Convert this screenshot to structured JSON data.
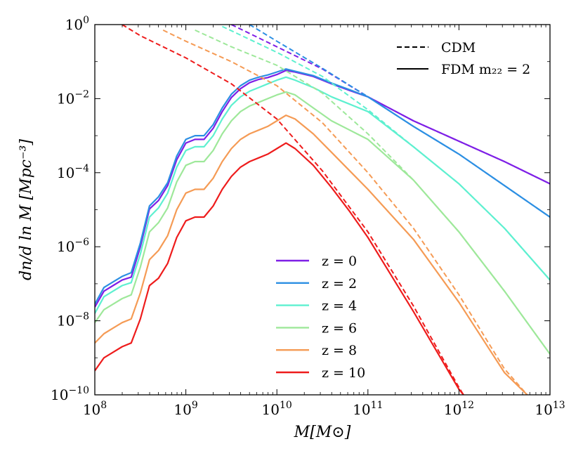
{
  "chart_data": {
    "type": "line",
    "title": "",
    "xlabel": "M[M⊙]",
    "ylabel": "dn/d ln M [Mpc⁻³]",
    "x_scale": "log",
    "y_scale": "log",
    "xlim_exp": [
      8,
      13
    ],
    "ylim_exp": [
      -10,
      0
    ],
    "x_ticks": [
      {
        "base": "10",
        "exp": "8"
      },
      {
        "base": "10",
        "exp": "9"
      },
      {
        "base": "10",
        "exp": "10"
      },
      {
        "base": "10",
        "exp": "11"
      },
      {
        "base": "10",
        "exp": "12"
      },
      {
        "base": "10",
        "exp": "13"
      }
    ],
    "y_ticks": [
      {
        "base": "10",
        "exp": "0",
        "value_exp": 0
      },
      {
        "base": "10",
        "exp": "−2",
        "value_exp": -2
      },
      {
        "base": "10",
        "exp": "−4",
        "value_exp": -4
      },
      {
        "base": "10",
        "exp": "−6",
        "value_exp": -6
      },
      {
        "base": "10",
        "exp": "−8",
        "value_exp": -8
      },
      {
        "base": "10",
        "exp": "−10",
        "value_exp": -10
      }
    ],
    "style_legend": [
      {
        "label": "CDM",
        "style": "dashed"
      },
      {
        "label": "FDM m₂₂ = 2",
        "style": "solid"
      }
    ],
    "series_legend_labels": [
      "z = 0",
      "z = 2",
      "z = 4",
      "z = 6",
      "z = 8",
      "z = 10"
    ],
    "series": [
      {
        "name": "z = 0",
        "color": "#7e1fe6",
        "cdm_log10": [
          [
            9.5,
            0
          ],
          [
            10,
            -0.6
          ],
          [
            10.5,
            -1.2
          ],
          [
            11,
            -1.95
          ],
          [
            11.5,
            -2.6
          ],
          [
            12,
            -3.15
          ],
          [
            12.5,
            -3.7
          ],
          [
            13,
            -4.3
          ]
        ],
        "fdm_log10": [
          [
            8,
            -7.63
          ],
          [
            8.1,
            -7.2
          ],
          [
            8.2,
            -7.05
          ],
          [
            8.3,
            -6.9
          ],
          [
            8.4,
            -6.82
          ],
          [
            8.5,
            -6.0
          ],
          [
            8.6,
            -4.98
          ],
          [
            8.7,
            -4.75
          ],
          [
            8.8,
            -4.35
          ],
          [
            8.9,
            -3.65
          ],
          [
            9.0,
            -3.2
          ],
          [
            9.1,
            -3.1
          ],
          [
            9.2,
            -3.1
          ],
          [
            9.3,
            -2.8
          ],
          [
            9.4,
            -2.35
          ],
          [
            9.5,
            -1.97
          ],
          [
            9.6,
            -1.73
          ],
          [
            9.7,
            -1.57
          ],
          [
            9.8,
            -1.48
          ],
          [
            9.9,
            -1.43
          ],
          [
            10,
            -1.35
          ],
          [
            10.1,
            -1.24
          ],
          [
            10.2,
            -1.28
          ],
          [
            10.4,
            -1.4
          ],
          [
            10.6,
            -1.6
          ],
          [
            10.8,
            -1.78
          ],
          [
            11,
            -1.95
          ],
          [
            11.5,
            -2.6
          ],
          [
            12,
            -3.15
          ],
          [
            12.5,
            -3.7
          ],
          [
            13,
            -4.3
          ]
        ]
      },
      {
        "name": "z = 2",
        "color": "#2c8fe3",
        "cdm_log10": [
          [
            9.7,
            0
          ],
          [
            10,
            -0.45
          ],
          [
            10.5,
            -1.18
          ],
          [
            11,
            -1.95
          ],
          [
            11.5,
            -2.75
          ],
          [
            12,
            -3.5
          ],
          [
            12.5,
            -4.35
          ],
          [
            13,
            -5.2
          ]
        ],
        "fdm_log10": [
          [
            8,
            -7.55
          ],
          [
            8.1,
            -7.1
          ],
          [
            8.2,
            -6.95
          ],
          [
            8.3,
            -6.8
          ],
          [
            8.4,
            -6.7
          ],
          [
            8.5,
            -5.9
          ],
          [
            8.6,
            -4.9
          ],
          [
            8.7,
            -4.65
          ],
          [
            8.8,
            -4.27
          ],
          [
            8.9,
            -3.55
          ],
          [
            9.0,
            -3.1
          ],
          [
            9.1,
            -3.0
          ],
          [
            9.2,
            -3.0
          ],
          [
            9.3,
            -2.7
          ],
          [
            9.4,
            -2.25
          ],
          [
            9.5,
            -1.88
          ],
          [
            9.6,
            -1.65
          ],
          [
            9.7,
            -1.5
          ],
          [
            9.8,
            -1.42
          ],
          [
            9.9,
            -1.36
          ],
          [
            10,
            -1.28
          ],
          [
            10.1,
            -1.2
          ],
          [
            10.2,
            -1.26
          ],
          [
            10.4,
            -1.38
          ],
          [
            10.6,
            -1.58
          ],
          [
            10.8,
            -1.76
          ],
          [
            11,
            -1.95
          ],
          [
            11.5,
            -2.75
          ],
          [
            12,
            -3.5
          ],
          [
            12.5,
            -4.35
          ],
          [
            13,
            -5.2
          ]
        ]
      },
      {
        "name": "z = 4",
        "color": "#5ef0d0",
        "cdm_log10": [
          [
            9.4,
            -0.05
          ],
          [
            10,
            -0.75
          ],
          [
            10.5,
            -1.4
          ],
          [
            11,
            -2.3
          ],
          [
            11.5,
            -3.3
          ],
          [
            12,
            -4.3
          ],
          [
            12.5,
            -5.5
          ],
          [
            13,
            -6.9
          ]
        ],
        "fdm_log10": [
          [
            8,
            -7.8
          ],
          [
            8.1,
            -7.35
          ],
          [
            8.2,
            -7.2
          ],
          [
            8.3,
            -7.05
          ],
          [
            8.4,
            -6.97
          ],
          [
            8.5,
            -6.2
          ],
          [
            8.6,
            -5.2
          ],
          [
            8.7,
            -4.95
          ],
          [
            8.8,
            -4.55
          ],
          [
            8.9,
            -3.85
          ],
          [
            9.0,
            -3.4
          ],
          [
            9.1,
            -3.3
          ],
          [
            9.2,
            -3.3
          ],
          [
            9.3,
            -3.0
          ],
          [
            9.4,
            -2.55
          ],
          [
            9.5,
            -2.18
          ],
          [
            9.6,
            -1.95
          ],
          [
            9.7,
            -1.8
          ],
          [
            9.8,
            -1.7
          ],
          [
            9.9,
            -1.6
          ],
          [
            10,
            -1.5
          ],
          [
            10.1,
            -1.42
          ],
          [
            10.2,
            -1.5
          ],
          [
            10.4,
            -1.7
          ],
          [
            10.6,
            -1.95
          ],
          [
            10.8,
            -2.15
          ],
          [
            11,
            -2.35
          ],
          [
            11.5,
            -3.3
          ],
          [
            12,
            -4.3
          ],
          [
            12.5,
            -5.5
          ],
          [
            13,
            -6.9
          ]
        ]
      },
      {
        "name": "z = 6",
        "color": "#9ee89a",
        "cdm_log10": [
          [
            9.1,
            -0.15
          ],
          [
            9.5,
            -0.6
          ],
          [
            10,
            -1.1
          ],
          [
            10.5,
            -1.85
          ],
          [
            11,
            -2.95
          ],
          [
            11.5,
            -4.2
          ],
          [
            12,
            -5.6
          ],
          [
            12.5,
            -7.2
          ],
          [
            13,
            -8.9
          ]
        ],
        "fdm_log10": [
          [
            8,
            -8.05
          ],
          [
            8.1,
            -7.7
          ],
          [
            8.2,
            -7.55
          ],
          [
            8.3,
            -7.4
          ],
          [
            8.4,
            -7.3
          ],
          [
            8.5,
            -6.55
          ],
          [
            8.6,
            -5.6
          ],
          [
            8.7,
            -5.35
          ],
          [
            8.8,
            -4.95
          ],
          [
            8.9,
            -4.25
          ],
          [
            9.0,
            -3.8
          ],
          [
            9.1,
            -3.7
          ],
          [
            9.2,
            -3.7
          ],
          [
            9.3,
            -3.4
          ],
          [
            9.4,
            -2.95
          ],
          [
            9.5,
            -2.6
          ],
          [
            9.6,
            -2.35
          ],
          [
            9.7,
            -2.2
          ],
          [
            9.8,
            -2.1
          ],
          [
            9.9,
            -2.0
          ],
          [
            10,
            -1.9
          ],
          [
            10.1,
            -1.82
          ],
          [
            10.2,
            -1.9
          ],
          [
            10.4,
            -2.25
          ],
          [
            10.6,
            -2.6
          ],
          [
            10.8,
            -2.85
          ],
          [
            11,
            -3.1
          ],
          [
            11.5,
            -4.2
          ],
          [
            12,
            -5.6
          ],
          [
            12.5,
            -7.2
          ],
          [
            13,
            -8.9
          ]
        ]
      },
      {
        "name": "z = 8",
        "color": "#f59b55",
        "cdm_log10": [
          [
            8.75,
            -0.15
          ],
          [
            9,
            -0.45
          ],
          [
            9.5,
            -1.0
          ],
          [
            10,
            -1.65
          ],
          [
            10.5,
            -2.65
          ],
          [
            11,
            -4.0
          ],
          [
            11.5,
            -5.5
          ],
          [
            12,
            -7.3
          ],
          [
            12.5,
            -9.3
          ],
          [
            12.75,
            -10
          ]
        ],
        "fdm_log10": [
          [
            8,
            -8.6
          ],
          [
            8.1,
            -8.35
          ],
          [
            8.2,
            -8.2
          ],
          [
            8.3,
            -8.05
          ],
          [
            8.4,
            -7.95
          ],
          [
            8.5,
            -7.25
          ],
          [
            8.6,
            -6.35
          ],
          [
            8.7,
            -6.1
          ],
          [
            8.8,
            -5.7
          ],
          [
            8.9,
            -5.0
          ],
          [
            9.0,
            -4.55
          ],
          [
            9.1,
            -4.45
          ],
          [
            9.2,
            -4.45
          ],
          [
            9.3,
            -4.15
          ],
          [
            9.4,
            -3.7
          ],
          [
            9.5,
            -3.35
          ],
          [
            9.6,
            -3.1
          ],
          [
            9.7,
            -2.95
          ],
          [
            9.8,
            -2.85
          ],
          [
            9.9,
            -2.75
          ],
          [
            10,
            -2.6
          ],
          [
            10.1,
            -2.45
          ],
          [
            10.2,
            -2.55
          ],
          [
            10.4,
            -2.95
          ],
          [
            10.6,
            -3.45
          ],
          [
            10.8,
            -3.95
          ],
          [
            11,
            -4.45
          ],
          [
            11.5,
            -5.8
          ],
          [
            12,
            -7.5
          ],
          [
            12.5,
            -9.4
          ],
          [
            12.75,
            -10
          ]
        ]
      },
      {
        "name": "z = 10",
        "color": "#ee1c1c",
        "cdm_log10": [
          [
            8.3,
            0
          ],
          [
            8.5,
            -0.3
          ],
          [
            9,
            -0.9
          ],
          [
            9.5,
            -1.6
          ],
          [
            10,
            -2.55
          ],
          [
            10.5,
            -3.95
          ],
          [
            11,
            -5.6
          ],
          [
            11.5,
            -7.6
          ],
          [
            12,
            -9.8
          ],
          [
            12.05,
            -10
          ]
        ],
        "fdm_log10": [
          [
            8,
            -9.35
          ],
          [
            8.1,
            -9.0
          ],
          [
            8.2,
            -8.85
          ],
          [
            8.3,
            -8.7
          ],
          [
            8.4,
            -8.6
          ],
          [
            8.5,
            -7.95
          ],
          [
            8.6,
            -7.05
          ],
          [
            8.7,
            -6.85
          ],
          [
            8.8,
            -6.45
          ],
          [
            8.9,
            -5.75
          ],
          [
            9.0,
            -5.3
          ],
          [
            9.1,
            -5.2
          ],
          [
            9.2,
            -5.2
          ],
          [
            9.3,
            -4.9
          ],
          [
            9.4,
            -4.45
          ],
          [
            9.5,
            -4.1
          ],
          [
            9.6,
            -3.85
          ],
          [
            9.7,
            -3.7
          ],
          [
            9.8,
            -3.6
          ],
          [
            9.9,
            -3.5
          ],
          [
            10,
            -3.35
          ],
          [
            10.1,
            -3.2
          ],
          [
            10.2,
            -3.35
          ],
          [
            10.4,
            -3.8
          ],
          [
            10.6,
            -4.4
          ],
          [
            10.8,
            -5.05
          ],
          [
            11,
            -5.75
          ],
          [
            11.5,
            -7.75
          ],
          [
            12,
            -9.85
          ],
          [
            12.05,
            -10
          ]
        ]
      }
    ]
  }
}
